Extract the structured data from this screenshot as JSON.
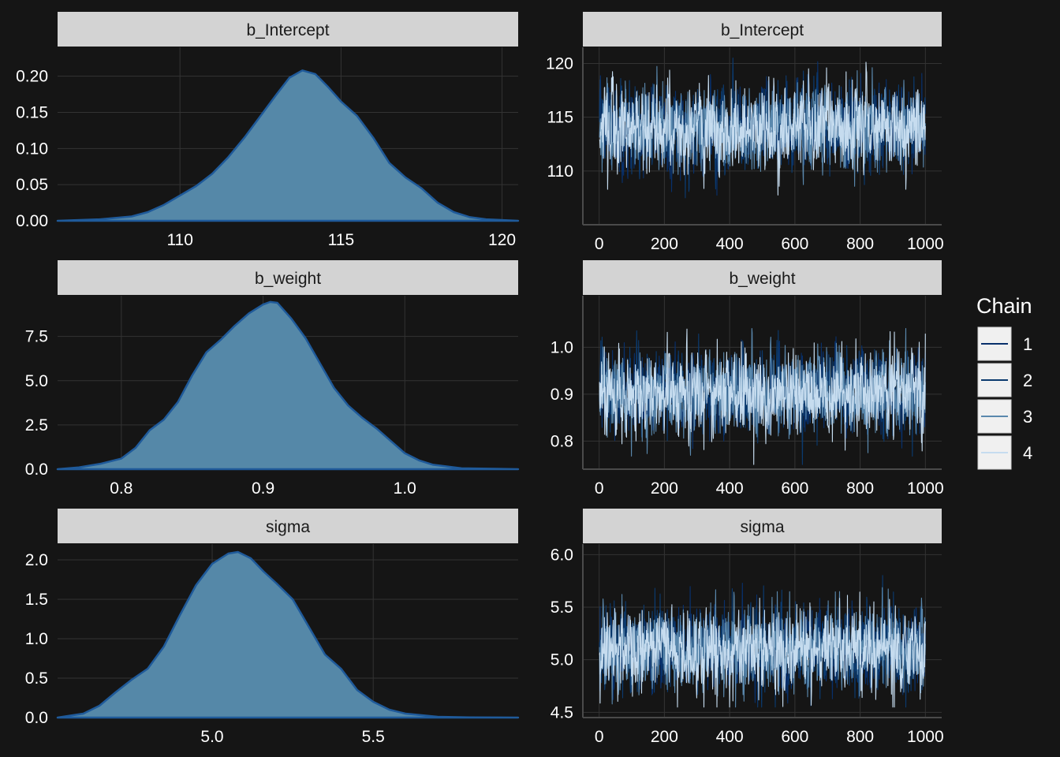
{
  "legend": {
    "title": "Chain",
    "entries": [
      {
        "label": "1",
        "color": "#08306b"
      },
      {
        "label": "2",
        "color": "#0b3a6e"
      },
      {
        "label": "3",
        "color": "#5a88ad"
      },
      {
        "label": "4",
        "color": "#c6dcef"
      }
    ]
  },
  "colors": {
    "background": "#151515",
    "strip": "#d3d3d3",
    "grid": "#333333",
    "density_fill": "#5588a8",
    "density_line": "#1f5a9a",
    "text": "#ffffff"
  },
  "chart_data": [
    {
      "type": "area",
      "strip_label": "b_Intercept",
      "xlim": [
        106.2,
        120.5
      ],
      "ylim": [
        0,
        0.24
      ],
      "x_ticks": [
        110,
        115,
        120
      ],
      "y_ticks": [
        0.0,
        0.05,
        0.1,
        0.15,
        0.2
      ],
      "x_tick_labels": [
        "110",
        "115",
        "120"
      ],
      "y_tick_labels": [
        "0.00",
        "0.05",
        "0.10",
        "0.15",
        "0.20"
      ],
      "density": {
        "x": [
          106.2,
          107.5,
          108.5,
          109,
          109.5,
          110,
          110.5,
          111,
          111.5,
          112,
          112.5,
          113,
          113.4,
          113.8,
          114.2,
          114.6,
          115,
          115.5,
          116,
          116.5,
          117,
          117.5,
          118,
          118.5,
          119,
          119.5,
          120.5
        ],
        "y": [
          0.0,
          0.002,
          0.006,
          0.012,
          0.022,
          0.035,
          0.048,
          0.065,
          0.088,
          0.115,
          0.145,
          0.175,
          0.198,
          0.208,
          0.203,
          0.185,
          0.165,
          0.145,
          0.115,
          0.08,
          0.06,
          0.045,
          0.025,
          0.012,
          0.005,
          0.002,
          0.0
        ]
      }
    },
    {
      "type": "line",
      "strip_label": "b_Intercept",
      "xlim": [
        -50,
        1050
      ],
      "ylim": [
        105,
        121.5
      ],
      "x_ticks": [
        0,
        200,
        400,
        600,
        800,
        1000
      ],
      "y_ticks": [
        110,
        115,
        120
      ],
      "x_tick_labels": [
        "0",
        "200",
        "400",
        "600",
        "800",
        "1000"
      ],
      "y_tick_labels": [
        "110",
        "115",
        "120"
      ],
      "trace": {
        "iterations": 1000,
        "center": 114.0,
        "sd": 1.9,
        "min": 107.5,
        "max": 120.5
      }
    },
    {
      "type": "area",
      "strip_label": "b_weight",
      "xlim": [
        0.755,
        1.08
      ],
      "ylim": [
        0,
        9.8
      ],
      "x_ticks": [
        0.8,
        0.9,
        1.0
      ],
      "y_ticks": [
        0.0,
        2.5,
        5.0,
        7.5
      ],
      "x_tick_labels": [
        "0.8",
        "0.9",
        "1.0"
      ],
      "y_tick_labels": [
        "0.0",
        "2.5",
        "5.0",
        "7.5"
      ],
      "density": {
        "x": [
          0.755,
          0.77,
          0.785,
          0.8,
          0.81,
          0.82,
          0.83,
          0.84,
          0.85,
          0.86,
          0.87,
          0.88,
          0.89,
          0.9,
          0.905,
          0.91,
          0.92,
          0.93,
          0.94,
          0.95,
          0.96,
          0.97,
          0.98,
          0.99,
          1.0,
          1.01,
          1.02,
          1.04,
          1.08
        ],
        "y": [
          0.0,
          0.1,
          0.3,
          0.6,
          1.2,
          2.2,
          2.8,
          3.8,
          5.3,
          6.6,
          7.3,
          8.1,
          8.8,
          9.3,
          9.45,
          9.4,
          8.5,
          7.4,
          6.0,
          4.6,
          3.6,
          2.9,
          2.3,
          1.6,
          0.9,
          0.5,
          0.25,
          0.05,
          0.0
        ]
      }
    },
    {
      "type": "line",
      "strip_label": "b_weight",
      "xlim": [
        -50,
        1050
      ],
      "ylim": [
        0.74,
        1.11
      ],
      "x_ticks": [
        0,
        200,
        400,
        600,
        800,
        1000
      ],
      "y_ticks": [
        0.8,
        0.9,
        1.0
      ],
      "x_tick_labels": [
        "0",
        "200",
        "400",
        "600",
        "800",
        "1000"
      ],
      "y_tick_labels": [
        "0.8",
        "0.9",
        "1.0"
      ],
      "trace": {
        "iterations": 1000,
        "center": 0.905,
        "sd": 0.042,
        "min": 0.75,
        "max": 1.04
      }
    },
    {
      "type": "area",
      "strip_label": "sigma",
      "xlim": [
        4.52,
        5.95
      ],
      "ylim": [
        0,
        2.2
      ],
      "x_ticks": [
        5.0,
        5.5
      ],
      "y_ticks": [
        0.0,
        0.5,
        1.0,
        1.5,
        2.0
      ],
      "x_tick_labels": [
        "5.0",
        "5.5"
      ],
      "y_tick_labels": [
        "0.0",
        "0.5",
        "1.0",
        "1.5",
        "2.0"
      ],
      "density": {
        "x": [
          4.52,
          4.6,
          4.65,
          4.7,
          4.75,
          4.8,
          4.85,
          4.9,
          4.95,
          5.0,
          5.05,
          5.08,
          5.12,
          5.16,
          5.2,
          5.25,
          5.3,
          5.35,
          5.4,
          5.45,
          5.5,
          5.55,
          5.6,
          5.7,
          5.8,
          5.95
        ],
        "y": [
          0.0,
          0.05,
          0.15,
          0.32,
          0.48,
          0.62,
          0.9,
          1.3,
          1.68,
          1.95,
          2.08,
          2.1,
          2.02,
          1.85,
          1.7,
          1.5,
          1.15,
          0.8,
          0.62,
          0.35,
          0.2,
          0.1,
          0.05,
          0.01,
          0.002,
          0.0
        ]
      }
    },
    {
      "type": "line",
      "strip_label": "sigma",
      "xlim": [
        -50,
        1050
      ],
      "ylim": [
        4.45,
        6.1
      ],
      "x_ticks": [
        0,
        200,
        400,
        600,
        800,
        1000
      ],
      "y_ticks": [
        4.5,
        5.0,
        5.5,
        6.0
      ],
      "x_tick_labels": [
        "0",
        "200",
        "400",
        "600",
        "800",
        "1000"
      ],
      "y_tick_labels": [
        "4.5",
        "5.0",
        "5.5",
        "6.0"
      ],
      "trace": {
        "iterations": 1000,
        "center": 5.09,
        "sd": 0.19,
        "min": 4.55,
        "max": 6.0
      }
    }
  ]
}
